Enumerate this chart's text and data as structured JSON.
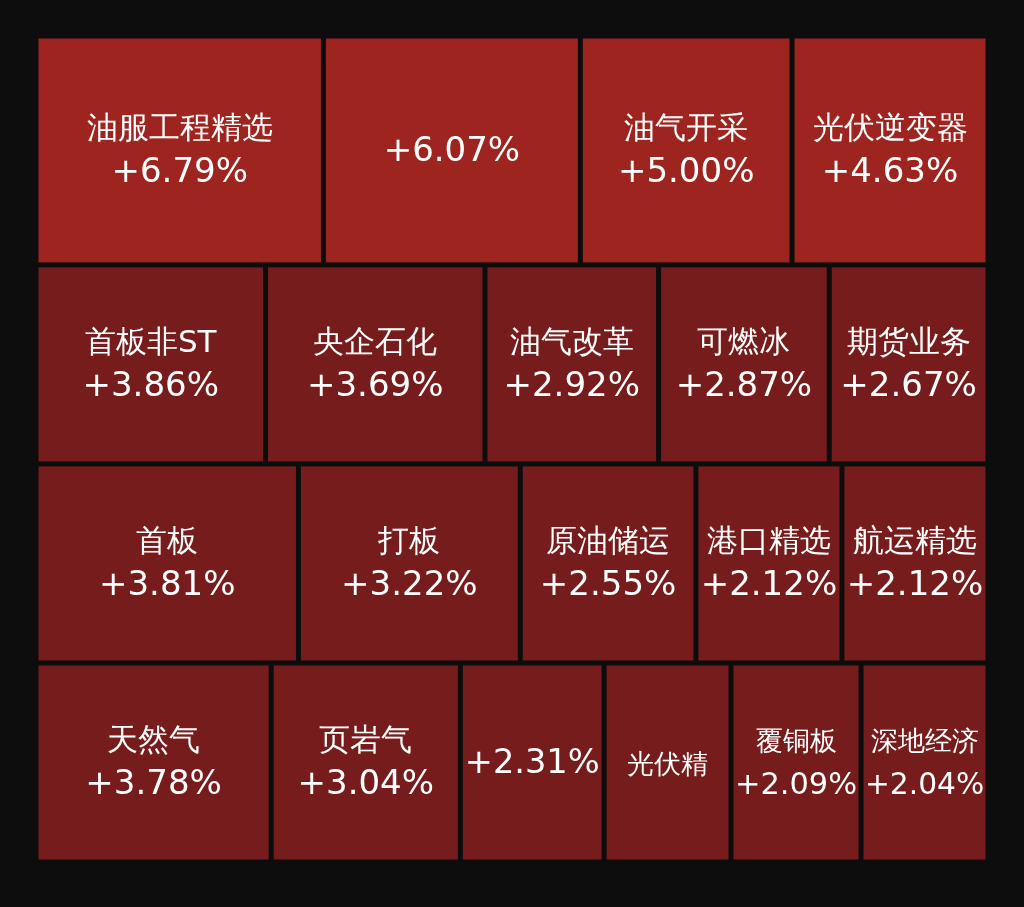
{
  "chart_data": {
    "type": "other",
    "categories": [
      "油服工程精选",
      null,
      "油气开采",
      "光伏逆变器",
      "首板非ST",
      "央企石化",
      "油气改革",
      "可燃冰",
      "期货业务",
      "首板",
      "打板",
      "原油储运",
      "港口精选",
      "航运精选",
      "天然气",
      "页岩气",
      null,
      "光伏精",
      "覆铜板",
      "深地经济"
    ],
    "values": [
      6.79,
      6.07,
      5.0,
      4.63,
      3.86,
      3.69,
      2.92,
      2.87,
      2.67,
      3.81,
      3.22,
      2.55,
      2.12,
      2.12,
      3.78,
      3.04,
      2.31,
      null,
      2.09,
      2.04
    ],
    "value_labels": [
      "+6.79%",
      "+6.07%",
      "+5.00%",
      "+4.63%",
      "+3.86%",
      "+3.69%",
      "+2.92%",
      "+2.87%",
      "+2.67%",
      "+3.81%",
      "+3.22%",
      "+2.55%",
      "+2.12%",
      "+2.12%",
      "+3.78%",
      "+3.04%",
      "+2.31%",
      null,
      "+2.09%",
      "+2.04%"
    ],
    "colors": [
      "#9e2420",
      "#9e2420",
      "#9e2420",
      "#9e2420",
      "#761c1c",
      "#761c1c",
      "#761c1c",
      "#761c1c",
      "#761c1c",
      "#761c1c",
      "#761c1c",
      "#761c1c",
      "#761c1c",
      "#761c1c",
      "#761c1c",
      "#761c1c",
      "#761c1c",
      "#761c1c",
      "#761c1c",
      "#761c1c"
    ]
  }
}
